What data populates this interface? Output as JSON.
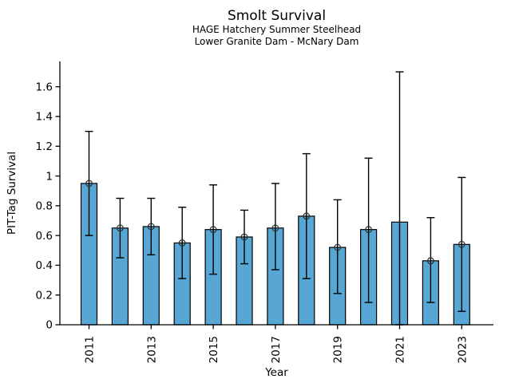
{
  "header": {
    "title": "Smolt Survival",
    "subtitle1": "HAGE Hatchery Summer Steelhead",
    "subtitle2": "Lower Granite Dam - McNary Dam"
  },
  "chart_data": {
    "type": "bar",
    "title": "Smolt Survival",
    "subtitle": [
      "HAGE Hatchery Summer Steelhead",
      "Lower Granite Dam - McNary Dam"
    ],
    "xlabel": "Year",
    "ylabel": "PIT-Tag Survival",
    "categories": [
      "2011",
      "2012",
      "2013",
      "2014",
      "2015",
      "2016",
      "2017",
      "2018",
      "2019",
      "2020",
      "2021",
      "2022",
      "2023"
    ],
    "values": [
      0.95,
      0.65,
      0.66,
      0.55,
      0.64,
      0.59,
      0.65,
      0.73,
      0.52,
      0.64,
      0.69,
      0.43,
      0.54
    ],
    "error_low": [
      0.6,
      0.45,
      0.47,
      0.31,
      0.34,
      0.41,
      0.37,
      0.31,
      0.21,
      0.15,
      0.0,
      0.15,
      0.09
    ],
    "error_high": [
      1.3,
      0.85,
      0.85,
      0.79,
      0.94,
      0.77,
      0.95,
      1.15,
      0.84,
      1.12,
      1.7,
      0.72,
      0.99
    ],
    "point_marker": [
      true,
      true,
      true,
      true,
      true,
      true,
      true,
      true,
      true,
      true,
      false,
      true,
      true
    ],
    "xtick_labels": [
      "2011",
      "2013",
      "2015",
      "2017",
      "2019",
      "2021",
      "2023"
    ],
    "ytick_labels": [
      "0",
      "0.2",
      "0.4",
      "0.6",
      "0.8",
      "1",
      "1.2",
      "1.4",
      "1.6"
    ],
    "yticks": [
      0,
      0.2,
      0.4,
      0.6,
      0.8,
      1.0,
      1.2,
      1.4,
      1.6
    ],
    "ylim": [
      0,
      1.77
    ],
    "grid": false,
    "legend": "none",
    "colors": {
      "bar_fill": "#58A6D4",
      "bar_edge": "#000000",
      "error_bar": "#000000",
      "marker_edge": "#2b2b2b",
      "axis": "#000000",
      "text": "#000000"
    }
  }
}
